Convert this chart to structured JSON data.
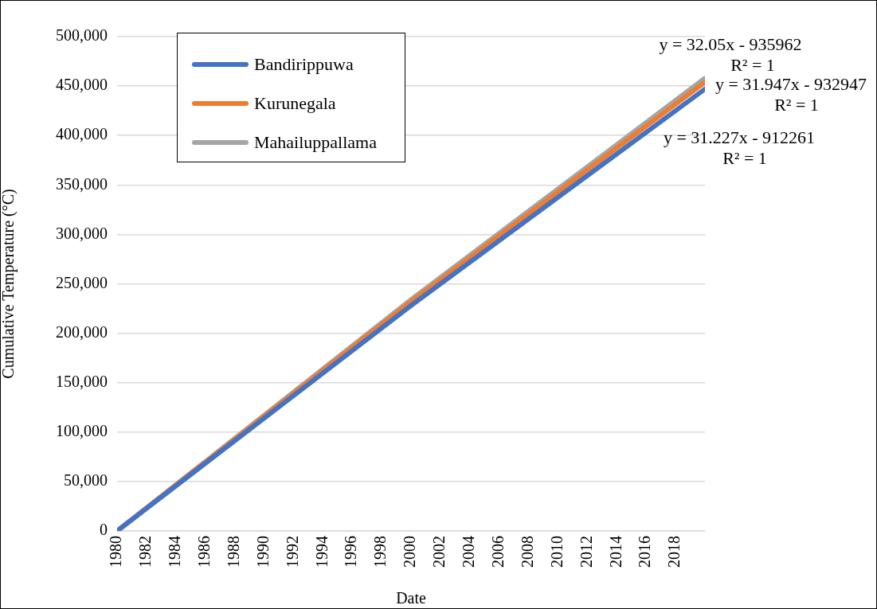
{
  "chart_data": {
    "type": "line",
    "xlabel": "Date",
    "ylabel": "Cumulative Temperature (°C)",
    "x": [
      1980,
      2000,
      2020
    ],
    "series": [
      {
        "name": "Bandirippuwa",
        "color": "#4472c4",
        "values": [
          0,
          228000,
          447000
        ]
      },
      {
        "name": "Kurunegala",
        "color": "#ed7d31",
        "values": [
          0,
          232000,
          454000
        ]
      },
      {
        "name": "Mahailuppallama",
        "color": "#a5a5a5",
        "values": [
          0,
          234000,
          458000
        ]
      }
    ],
    "xlim": [
      1980,
      2020
    ],
    "xticks": [
      1980,
      1982,
      1984,
      1986,
      1988,
      1990,
      1992,
      1994,
      1996,
      1998,
      2000,
      2002,
      2004,
      2006,
      2008,
      2010,
      2012,
      2014,
      2016,
      2018
    ],
    "ylim": [
      0,
      500000
    ],
    "yticks": [
      {
        "value": 0,
        "label": "0"
      },
      {
        "value": 50000,
        "label": "50,000"
      },
      {
        "value": 100000,
        "label": "100,000"
      },
      {
        "value": 150000,
        "label": "150,000"
      },
      {
        "value": 200000,
        "label": "200,000"
      },
      {
        "value": 250000,
        "label": "250,000"
      },
      {
        "value": 300000,
        "label": "300,000"
      },
      {
        "value": 350000,
        "label": "350,000"
      },
      {
        "value": 400000,
        "label": "400,000"
      },
      {
        "value": 450000,
        "label": "450,000"
      },
      {
        "value": 500000,
        "label": "500,000"
      }
    ],
    "grid": "y",
    "legend": "top left",
    "marker": "none",
    "line_style": "solid",
    "annotations": [
      "y = 32.05x - 935962\nR² = 1",
      "y = 31.947x - 932947\nR² = 1",
      "y = 31.227x - 912261\nR² = 1"
    ]
  }
}
